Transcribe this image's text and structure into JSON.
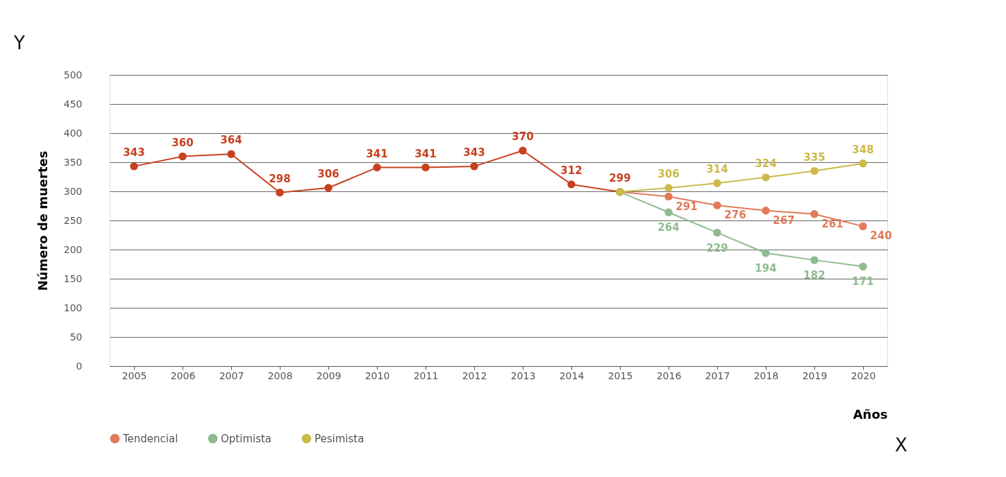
{
  "chart_data": {
    "type": "line",
    "xlabel": "Años",
    "ylabel": "Número de muertes",
    "annotations": [
      "Y",
      "X"
    ],
    "categories": [
      "2005",
      "2006",
      "2007",
      "2008",
      "2009",
      "2010",
      "2011",
      "2012",
      "2013",
      "2014",
      "2015",
      "2016",
      "2017",
      "2018",
      "2019",
      "2020"
    ],
    "ylim": [
      0,
      500
    ],
    "yticks": [
      0,
      50,
      100,
      150,
      200,
      250,
      300,
      350,
      400,
      450,
      500
    ],
    "grid": "y",
    "legend": "bottom",
    "marker": "circle",
    "line_style": "solid",
    "series": [
      {
        "color": "#c8401f",
        "values": [
          343,
          360,
          364,
          298,
          306,
          341,
          341,
          343,
          370,
          312,
          299,
          null,
          null,
          null,
          null,
          null
        ],
        "value_labels": [
          "343",
          "360",
          "364",
          "298",
          "306",
          "341",
          "341",
          "343",
          "370",
          "312",
          "299",
          null,
          null,
          null,
          null,
          null
        ]
      },
      {
        "name": "Tendencial",
        "color": "#e07a58",
        "values": [
          null,
          null,
          null,
          null,
          null,
          null,
          null,
          null,
          null,
          null,
          299,
          291,
          276,
          267,
          261,
          240
        ],
        "value_labels": [
          null,
          null,
          null,
          null,
          null,
          null,
          null,
          null,
          null,
          null,
          null,
          "291",
          "276",
          "267",
          "261",
          "240"
        ]
      },
      {
        "name": "Optimista",
        "color": "#8fbb8f",
        "values": [
          null,
          null,
          null,
          null,
          null,
          null,
          null,
          null,
          null,
          null,
          299,
          264,
          229,
          194,
          182,
          171
        ],
        "value_labels": [
          null,
          null,
          null,
          null,
          null,
          null,
          null,
          null,
          null,
          null,
          null,
          "264",
          "229",
          "194",
          "182",
          "171"
        ]
      },
      {
        "name": "Pesimista",
        "color": "#cdb94a",
        "values": [
          null,
          null,
          null,
          null,
          null,
          null,
          null,
          null,
          null,
          null,
          299,
          306,
          314,
          324,
          335,
          348
        ],
        "value_labels": [
          null,
          null,
          null,
          null,
          null,
          null,
          null,
          null,
          null,
          null,
          null,
          "306",
          "314",
          "324",
          "335",
          "348"
        ]
      }
    ]
  }
}
